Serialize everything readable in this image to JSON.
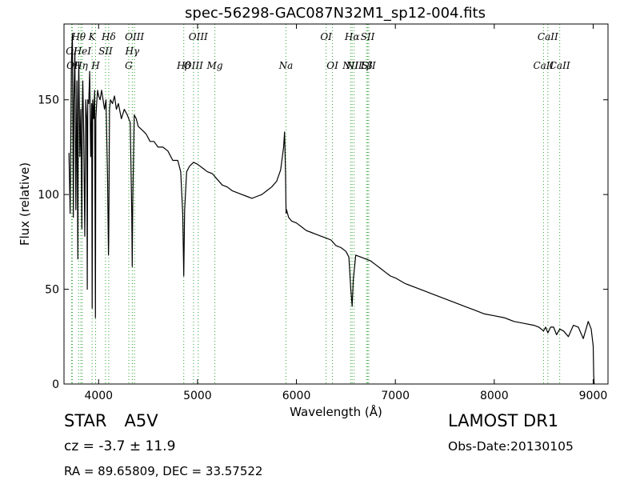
{
  "chart_data": {
    "type": "line",
    "title": "spec-56298-GAC087N32M1_sp12-004.fits",
    "xlabel": "Wavelength (Å)",
    "ylabel": "Flux (relative)",
    "xlim": [
      3650,
      9150
    ],
    "ylim": [
      0,
      190
    ],
    "xticks": [
      4000,
      5000,
      6000,
      7000,
      8000,
      9000
    ],
    "yticks": [
      0,
      50,
      100,
      150
    ],
    "grid": false,
    "line_color": "#000000",
    "marker_color": "#2ca02c",
    "series": [
      {
        "x": [
          3700,
          3712,
          3725,
          3735,
          3745,
          3750,
          3760,
          3770,
          3780,
          3790,
          3795,
          3800,
          3810,
          3820,
          3830,
          3835,
          3840,
          3850,
          3860,
          3870,
          3880,
          3885,
          3890,
          3900,
          3910,
          3920,
          3930,
          3935,
          3940,
          3950,
          3960,
          3968,
          3972,
          3980,
          3990,
          4000,
          4015,
          4030,
          4045,
          4060,
          4075,
          4090,
          4100,
          4102,
          4110,
          4120,
          4140,
          4160,
          4180,
          4200,
          4230,
          4260,
          4290,
          4320,
          4335,
          4340,
          4345,
          4360,
          4380,
          4400,
          4440,
          4480,
          4520,
          4560,
          4600,
          4650,
          4700,
          4750,
          4800,
          4830,
          4850,
          4861,
          4870,
          4890,
          4920,
          4960,
          5000,
          5050,
          5100,
          5150,
          5200,
          5250,
          5300,
          5350,
          5400,
          5450,
          5500,
          5550,
          5600,
          5650,
          5700,
          5750,
          5800,
          5840,
          5870,
          5880,
          5890,
          5895,
          5900,
          5920,
          5950,
          6000,
          6050,
          6100,
          6150,
          6200,
          6250,
          6300,
          6350,
          6400,
          6450,
          6500,
          6530,
          6550,
          6563,
          6575,
          6600,
          6650,
          6700,
          6750,
          6800,
          6850,
          6900,
          6950,
          7000,
          7100,
          7200,
          7300,
          7400,
          7500,
          7600,
          7700,
          7800,
          7900,
          8000,
          8100,
          8200,
          8300,
          8400,
          8450,
          8498,
          8520,
          8542,
          8570,
          8600,
          8630,
          8662,
          8700,
          8750,
          8800,
          8850,
          8900,
          8950,
          8980,
          9000,
          9005,
          9010
        ],
        "y": [
          122,
          90,
          170,
          185,
          88,
          150,
          175,
          92,
          160,
          66,
          150,
          170,
          120,
          145,
          82,
          145,
          160,
          130,
          78,
          150,
          140,
          50,
          150,
          148,
          165,
          120,
          148,
          40,
          150,
          140,
          155,
          35,
          140,
          148,
          155,
          152,
          150,
          155,
          150,
          145,
          150,
          110,
          68,
          75,
          145,
          150,
          148,
          152,
          145,
          148,
          140,
          145,
          142,
          138,
          90,
          62,
          95,
          142,
          140,
          136,
          134,
          132,
          128,
          128,
          125,
          125,
          123,
          118,
          118,
          112,
          90,
          57,
          92,
          112,
          115,
          117,
          116,
          114,
          112,
          111,
          108,
          105,
          104,
          102,
          101,
          100,
          99,
          98,
          99,
          100,
          102,
          104,
          107,
          113,
          125,
          133,
          112,
          90,
          92,
          88,
          86,
          85,
          83,
          81,
          80,
          79,
          78,
          77,
          76,
          73,
          72,
          70,
          67,
          50,
          41,
          55,
          68,
          67,
          66,
          65,
          63,
          61,
          59,
          57,
          56,
          53,
          51,
          49,
          47,
          45,
          43,
          41,
          39,
          37,
          36,
          35,
          33,
          32,
          31,
          30,
          28,
          30,
          27,
          30,
          30,
          26,
          29,
          28,
          25,
          31,
          30,
          24,
          33,
          29,
          20,
          5,
          0
        ]
      }
    ],
    "lines": [
      {
        "name": "OI",
        "wl": 3727,
        "row": 2
      },
      {
        "name": "OI",
        "wl": 3734,
        "row": 3
      },
      {
        "name": "Hθ",
        "wl": 3798,
        "row": 1
      },
      {
        "name": "HeI",
        "wl": 3835,
        "row": 2
      },
      {
        "name": "Hη",
        "wl": 3820,
        "row": 3
      },
      {
        "name": "K",
        "wl": 3934,
        "row": 1
      },
      {
        "name": "SII",
        "wl": 4070,
        "row": 2
      },
      {
        "name": "H",
        "wl": 3969,
        "row": 3
      },
      {
        "name": "Hδ",
        "wl": 4102,
        "row": 1
      },
      {
        "name": "OIII",
        "wl": 4363,
        "row": 1
      },
      {
        "name": "Hγ",
        "wl": 4340,
        "row": 2
      },
      {
        "name": "G",
        "wl": 4305,
        "row": 4
      },
      {
        "name": "OIII",
        "wl": 5007,
        "row": 1
      },
      {
        "name": "OIII",
        "wl": 4959,
        "row": 3
      },
      {
        "name": "Hβ",
        "wl": 4861,
        "row": 4
      },
      {
        "name": "Mg",
        "wl": 5175,
        "row": 4
      },
      {
        "name": "Na",
        "wl": 5894,
        "row": 3
      },
      {
        "name": "OI",
        "wl": 6300,
        "row": 1
      },
      {
        "name": "OI",
        "wl": 6364,
        "row": 4
      },
      {
        "name": "Hα",
        "wl": 6563,
        "row": 1
      },
      {
        "name": "SII",
        "wl": 6720,
        "row": 1
      },
      {
        "name": "NII",
        "wl": 6584,
        "row": 3
      },
      {
        "name": "Lβ",
        "wl": 6708,
        "row": 3
      },
      {
        "name": "NII",
        "wl": 6548,
        "row": 4
      },
      {
        "name": "SII",
        "wl": 6731,
        "row": 4
      },
      {
        "name": "CaII",
        "wl": 8542,
        "row": 1
      },
      {
        "name": "CaII",
        "wl": 8498,
        "row": 3
      },
      {
        "name": "CaII",
        "wl": 8662,
        "row": 4
      }
    ]
  },
  "info": {
    "object_class": "STAR",
    "subclass": "A5V",
    "cz": "cz = -3.7 ± 11.9",
    "radec": "RA = 89.65809, DEC = 33.57522",
    "survey": "LAMOST DR1",
    "obs_date": "Obs-Date:20130105"
  }
}
